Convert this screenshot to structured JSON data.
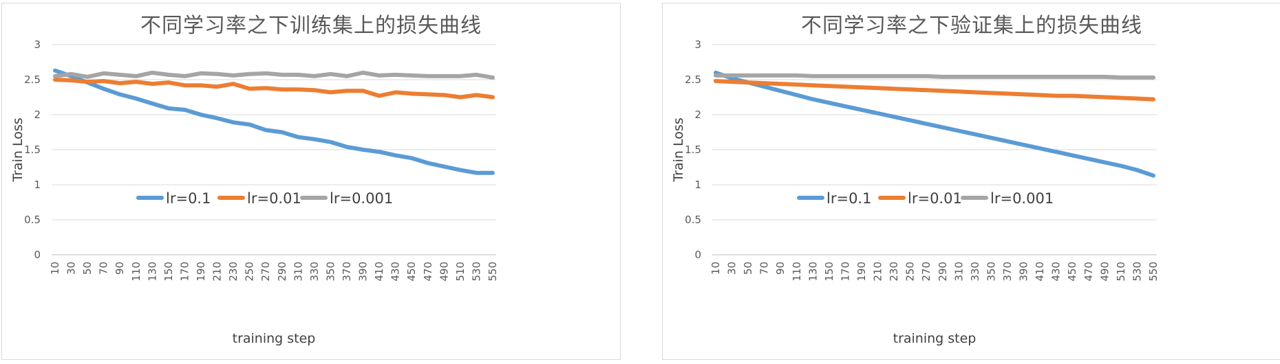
{
  "chart_data": [
    {
      "type": "line",
      "title": "不同学习率之下训练集上的损失曲线",
      "xlabel": "training   step",
      "ylabel": "Train  Loss",
      "ylim": [
        0,
        3
      ],
      "yticks": [
        "0",
        "0.5",
        "1",
        "1.5",
        "2",
        "2.5",
        "3"
      ],
      "categories": [
        "10",
        "30",
        "50",
        "70",
        "90",
        "110",
        "130",
        "150",
        "170",
        "190",
        "210",
        "230",
        "250",
        "270",
        "290",
        "310",
        "330",
        "350",
        "370",
        "390",
        "410",
        "430",
        "450",
        "470",
        "490",
        "510",
        "530",
        "550"
      ],
      "grid": true,
      "legend": "center",
      "series": [
        {
          "name": "lr=0.1",
          "color": "#5b9bd5",
          "values": [
            2.63,
            2.55,
            2.46,
            2.37,
            2.29,
            2.23,
            2.16,
            2.09,
            2.07,
            2.0,
            1.95,
            1.89,
            1.86,
            1.78,
            1.75,
            1.68,
            1.65,
            1.61,
            1.54,
            1.5,
            1.47,
            1.42,
            1.38,
            1.31,
            1.26,
            1.21,
            1.17,
            1.17
          ]
        },
        {
          "name": "lr=0.01",
          "color": "#ed7d31",
          "values": [
            2.5,
            2.49,
            2.47,
            2.48,
            2.45,
            2.47,
            2.44,
            2.46,
            2.42,
            2.42,
            2.4,
            2.44,
            2.37,
            2.38,
            2.36,
            2.36,
            2.35,
            2.32,
            2.34,
            2.34,
            2.27,
            2.32,
            2.3,
            2.29,
            2.28,
            2.25,
            2.28,
            2.25
          ]
        },
        {
          "name": "lr=0.001",
          "color": "#a5a5a5",
          "values": [
            2.55,
            2.58,
            2.54,
            2.59,
            2.57,
            2.55,
            2.6,
            2.57,
            2.55,
            2.59,
            2.58,
            2.56,
            2.58,
            2.59,
            2.57,
            2.57,
            2.55,
            2.58,
            2.55,
            2.6,
            2.56,
            2.57,
            2.56,
            2.55,
            2.55,
            2.55,
            2.57,
            2.53
          ]
        }
      ]
    },
    {
      "type": "line",
      "title": "不同学习率之下验证集上的损失曲线",
      "xlabel": "training   step",
      "ylabel": "Train  Loss",
      "ylim": [
        0,
        3
      ],
      "yticks": [
        "0",
        "0.5",
        "1",
        "1.5",
        "2",
        "2.5",
        "3"
      ],
      "categories": [
        "10",
        "30",
        "50",
        "70",
        "90",
        "110",
        "130",
        "150",
        "170",
        "190",
        "210",
        "230",
        "250",
        "270",
        "290",
        "310",
        "330",
        "350",
        "370",
        "390",
        "410",
        "430",
        "450",
        "470",
        "490",
        "510",
        "530",
        "550"
      ],
      "grid": true,
      "legend": "center",
      "series": [
        {
          "name": "lr=0.1",
          "color": "#5b9bd5",
          "values": [
            2.6,
            2.52,
            2.46,
            2.4,
            2.34,
            2.28,
            2.22,
            2.17,
            2.12,
            2.07,
            2.02,
            1.97,
            1.92,
            1.87,
            1.82,
            1.77,
            1.72,
            1.67,
            1.62,
            1.57,
            1.52,
            1.47,
            1.42,
            1.37,
            1.32,
            1.27,
            1.21,
            1.13
          ]
        },
        {
          "name": "lr=0.01",
          "color": "#ed7d31",
          "values": [
            2.48,
            2.47,
            2.46,
            2.45,
            2.44,
            2.43,
            2.42,
            2.41,
            2.4,
            2.39,
            2.38,
            2.37,
            2.36,
            2.35,
            2.34,
            2.33,
            2.32,
            2.31,
            2.3,
            2.29,
            2.28,
            2.27,
            2.27,
            2.26,
            2.25,
            2.24,
            2.23,
            2.22
          ]
        },
        {
          "name": "lr=0.001",
          "color": "#a5a5a5",
          "values": [
            2.56,
            2.56,
            2.56,
            2.56,
            2.56,
            2.56,
            2.55,
            2.55,
            2.55,
            2.55,
            2.55,
            2.55,
            2.55,
            2.55,
            2.54,
            2.54,
            2.54,
            2.54,
            2.54,
            2.54,
            2.54,
            2.54,
            2.54,
            2.54,
            2.54,
            2.53,
            2.53,
            2.53
          ]
        }
      ]
    }
  ]
}
